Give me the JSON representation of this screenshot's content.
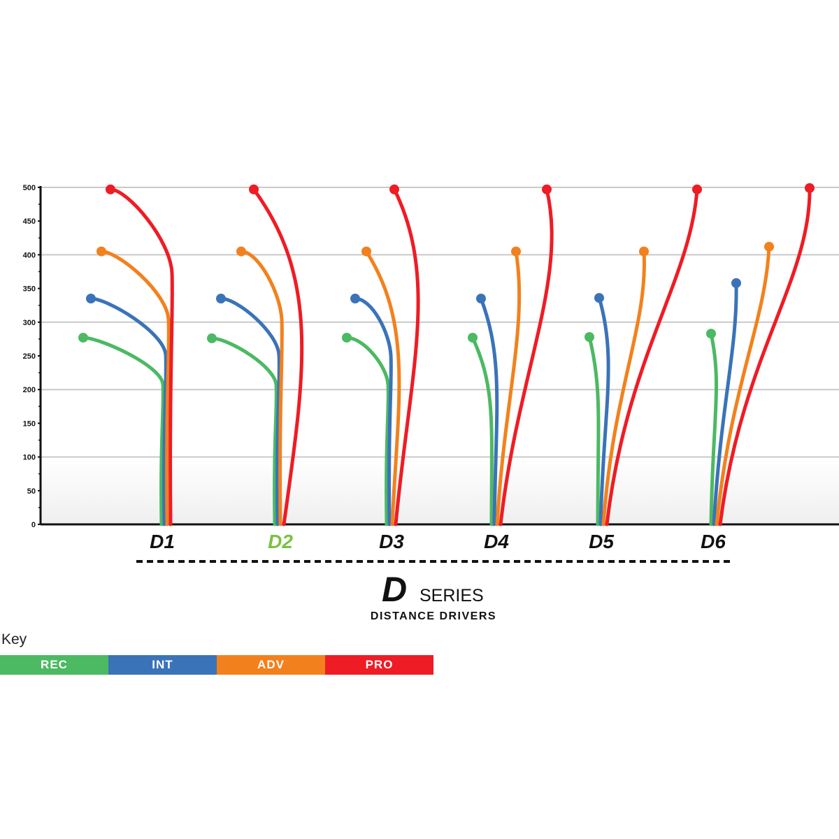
{
  "chart_data": {
    "type": "line",
    "title": "",
    "xlabel": "",
    "ylabel": "",
    "ylim": [
      0,
      500
    ],
    "y_ticks": [
      "0",
      "50",
      "100",
      "150",
      "200",
      "250",
      "300",
      "350",
      "400",
      "450",
      "500"
    ],
    "grid": true,
    "categories": [
      "D1",
      "D2",
      "D3",
      "D4",
      "D5",
      "D6"
    ],
    "highlighted_category": "D2",
    "colors": {
      "REC": "#4cb963",
      "INT": "#3a73b8",
      "ADV": "#f2811d",
      "PRO": "#ee1c25",
      "highlight": "#7ac143"
    },
    "series": [
      {
        "name": "REC",
        "end_distance": [
          277,
          276,
          277,
          277,
          278,
          283
        ]
      },
      {
        "name": "INT",
        "end_distance": [
          335,
          335,
          335,
          335,
          336,
          358
        ]
      },
      {
        "name": "ADV",
        "end_distance": [
          405,
          405,
          405,
          405,
          405,
          412
        ]
      },
      {
        "name": "PRO",
        "end_distance": [
          497,
          497,
          497,
          497,
          497,
          499
        ]
      }
    ]
  },
  "brand": {
    "logo_letter": "D",
    "series_word": "SERIES",
    "subtitle": "DISTANCE DRIVERS"
  },
  "key": {
    "title": "Key",
    "items": [
      {
        "label": "REC",
        "color": "#4cb963"
      },
      {
        "label": "INT",
        "color": "#3a73b8"
      },
      {
        "label": "ADV",
        "color": "#f2811d"
      },
      {
        "label": "PRO",
        "color": "#ee1c25"
      }
    ]
  }
}
